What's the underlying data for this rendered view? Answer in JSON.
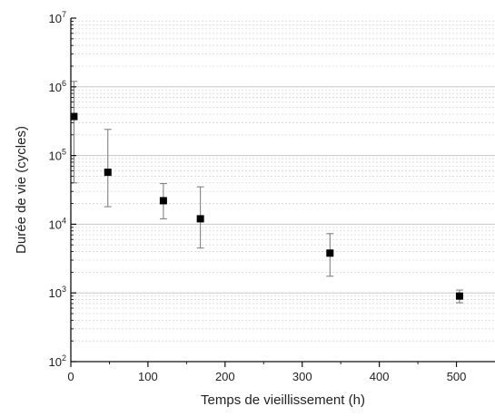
{
  "chart_data": {
    "type": "scatter",
    "xlabel": "Temps de vieillissement (h)",
    "ylabel": "Durée de vie (cycles)",
    "xlim": [
      0,
      550
    ],
    "ylim": [
      100,
      10000000
    ],
    "yscale": "log",
    "x_ticks": [
      0,
      100,
      200,
      300,
      400,
      500
    ],
    "y_tick_labels": [
      {
        "base": "10",
        "exp": "2",
        "value": 100
      },
      {
        "base": "10",
        "exp": "3",
        "value": 1000
      },
      {
        "base": "10",
        "exp": "4",
        "value": 10000
      },
      {
        "base": "10",
        "exp": "5",
        "value": 100000
      },
      {
        "base": "10",
        "exp": "6",
        "value": 1000000
      },
      {
        "base": "10",
        "exp": "7",
        "value": 10000000
      }
    ],
    "grid": true,
    "marker": "square",
    "marker_color": "#000000",
    "error_bar_color": "#777777",
    "points": [
      {
        "x": 4,
        "y": 370000,
        "y_low": 40000,
        "y_high": 1200000
      },
      {
        "x": 48,
        "y": 57000,
        "y_low": 18000,
        "y_high": 240000
      },
      {
        "x": 120,
        "y": 22000,
        "y_low": 12000,
        "y_high": 39000
      },
      {
        "x": 168,
        "y": 12000,
        "y_low": 4500,
        "y_high": 35000
      },
      {
        "x": 336,
        "y": 3800,
        "y_low": 1750,
        "y_high": 7300
      },
      {
        "x": 504,
        "y": 900,
        "y_low": 720,
        "y_high": 1100
      }
    ]
  }
}
